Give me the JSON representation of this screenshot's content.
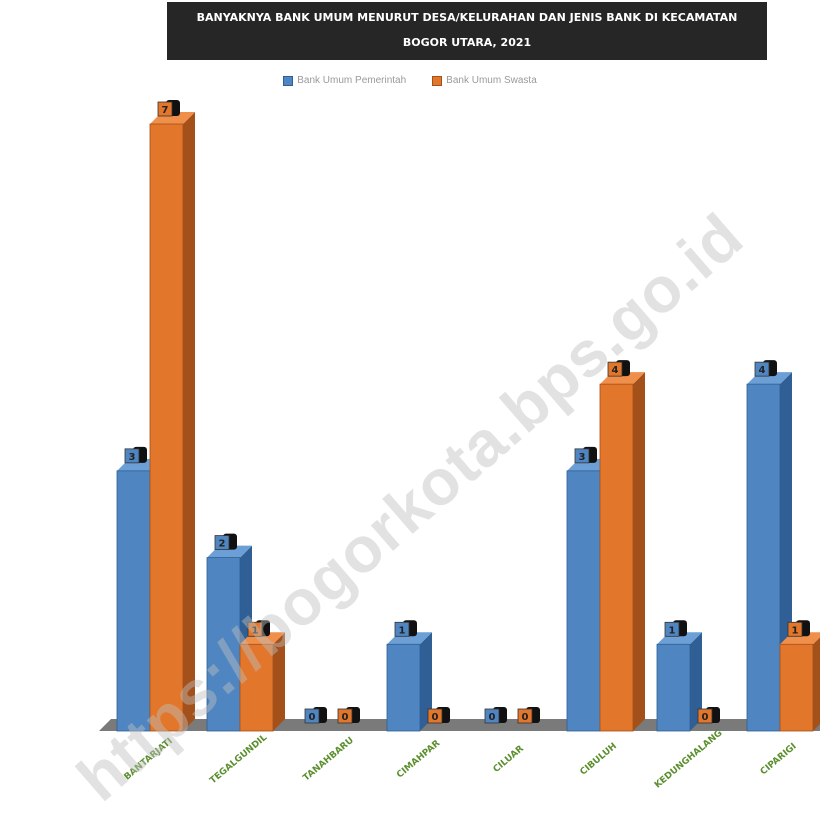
{
  "chart_data": {
    "type": "bar",
    "title_line1": "BANYAKNYA BANK UMUM MENURUT DESA/KELURAHAN DAN JENIS BANK DI KECAMATAN",
    "title_line2": "BOGOR UTARA, 2021",
    "categories": [
      "BANTARJATI",
      "TEGALGUNDIL",
      "TANAHBARU",
      "CIMAHPAR",
      "CILUAR",
      "CIBULUH",
      "KEDUNGHALANG",
      "CIPARIGI"
    ],
    "series": [
      {
        "name": "Bank Umum Pemerintah",
        "color": "#4f86c2",
        "values": [
          3,
          2,
          0,
          1,
          0,
          3,
          1,
          4
        ]
      },
      {
        "name": "Bank Umum Swasta",
        "color": "#e2762b",
        "values": [
          7,
          1,
          0,
          0,
          0,
          4,
          0,
          1
        ]
      }
    ],
    "ylim": [
      0,
      7
    ],
    "grid": false,
    "legend_position": "top-center"
  },
  "watermark": "https://bogorkota.bps.go.id"
}
